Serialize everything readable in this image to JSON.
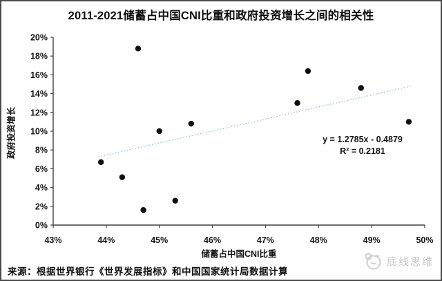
{
  "title": "2011-2021储蓄占中国CNI比重和政府投资增长之间的相关性",
  "source_note": "来源：根据世界银行《世界发展指标》和中国国家统计局数据计算",
  "watermark": {
    "text": "底线思维",
    "color": "#c7c7c7"
  },
  "chart_data": {
    "type": "scatter",
    "title": "2011-2021储蓄占中国CNI比重和政府投资增长之间的相关性",
    "xlabel": "储蓄占中国CNI比重",
    "ylabel": "政府投资增长",
    "xlim": [
      43,
      50
    ],
    "ylim": [
      0,
      20
    ],
    "xtick_step": 1,
    "ytick_step": 2,
    "x_tick_labels": [
      "43%",
      "44%",
      "45%",
      "46%",
      "47%",
      "48%",
      "49%",
      "50%"
    ],
    "y_tick_labels": [
      "0%",
      "2%",
      "4%",
      "6%",
      "8%",
      "10%",
      "12%",
      "14%",
      "16%",
      "18%",
      "20%"
    ],
    "grid": false,
    "legend": "none",
    "point_color": "#0f0f0f",
    "axis_color": "#3f3f3f",
    "points": [
      {
        "x": 43.9,
        "y": 6.7
      },
      {
        "x": 44.3,
        "y": 5.1
      },
      {
        "x": 44.6,
        "y": 18.8
      },
      {
        "x": 44.7,
        "y": 1.6
      },
      {
        "x": 45.0,
        "y": 10.0
      },
      {
        "x": 45.3,
        "y": 2.6
      },
      {
        "x": 45.6,
        "y": 10.8
      },
      {
        "x": 47.6,
        "y": 13.0
      },
      {
        "x": 47.8,
        "y": 16.4
      },
      {
        "x": 48.8,
        "y": 14.6
      },
      {
        "x": 49.7,
        "y": 11.0
      }
    ],
    "trendline": {
      "equation_label": "y = 1.2785x - 0.4879",
      "r2_label": "R² = 0.2181",
      "slope": 1.2785,
      "intercept": -0.4879,
      "x_range_pct": [
        43.85,
        49.75
      ],
      "color": "#a9bdd8",
      "style": "dotted"
    }
  }
}
